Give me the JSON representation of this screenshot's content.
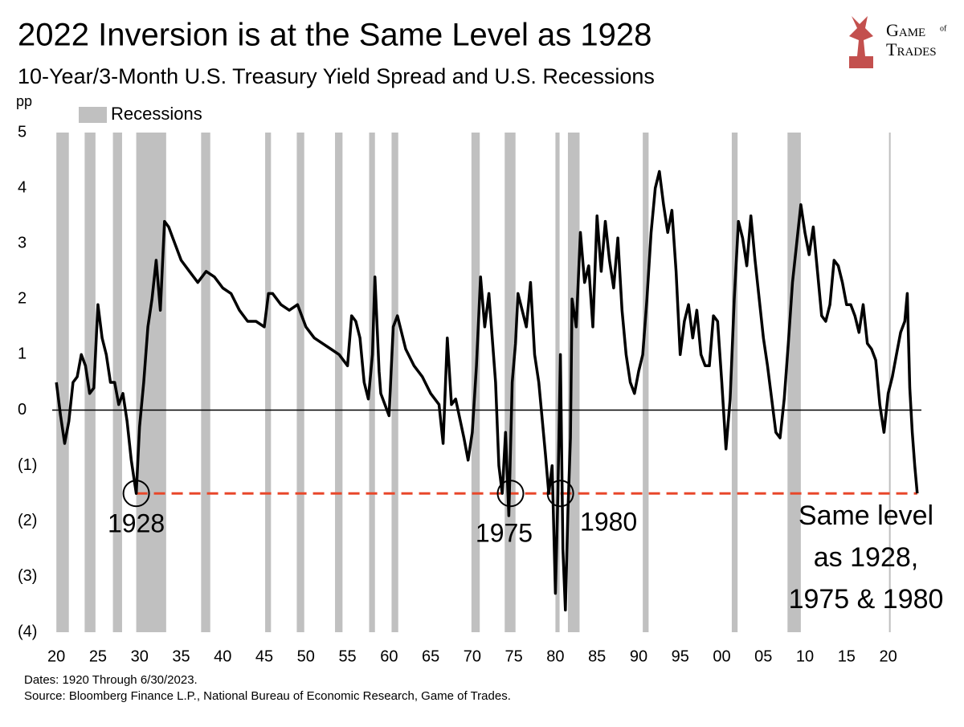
{
  "chart_data": {
    "type": "line",
    "title": "2022 Inversion is at the Same Level as 1928",
    "subtitle": "10-Year/3-Month U.S. Treasury Yield Spread and U.S. Recessions",
    "y_label": "pp",
    "logo": [
      "Game",
      "of",
      "Trades"
    ],
    "footnotes": [
      "Dates: 1920 Through 6/30/2023.",
      "Source: Bloomberg Finance L.P., National Bureau of Economic Research, Game of Trades."
    ],
    "color": "#000000",
    "recessions": {
      "name": "Recessions",
      "color": "#c0c0c0",
      "periods": [
        [
          1920.0,
          1921.5
        ],
        [
          1923.4,
          1924.7
        ],
        [
          1926.8,
          1927.9
        ],
        [
          1929.6,
          1933.2
        ],
        [
          1937.4,
          1938.5
        ],
        [
          1945.1,
          1945.8
        ],
        [
          1948.9,
          1949.8
        ],
        [
          1953.5,
          1954.4
        ],
        [
          1957.6,
          1958.3
        ],
        [
          1960.3,
          1961.1
        ],
        [
          1969.9,
          1970.9
        ],
        [
          1973.9,
          1975.2
        ],
        [
          1980.0,
          1980.5
        ],
        [
          1981.5,
          1982.9
        ],
        [
          1990.5,
          1991.2
        ],
        [
          2001.2,
          2001.9
        ],
        [
          2007.9,
          2009.5
        ],
        [
          2020.1,
          2020.3
        ]
      ]
    },
    "x": [
      1920.0,
      1920.5,
      1921,
      1921.5,
      1922,
      1922.5,
      1923,
      1923.5,
      1924,
      1924.5,
      1925,
      1925.5,
      1926,
      1926.5,
      1927,
      1927.5,
      1928,
      1928.5,
      1929,
      1929.4,
      1929.6,
      1930,
      1930.5,
      1931,
      1931.5,
      1932,
      1932.5,
      1933,
      1933.5,
      1934,
      1935,
      1936,
      1937,
      1938,
      1939,
      1940,
      1941,
      1942,
      1943,
      1944,
      1945,
      1945.5,
      1946,
      1947,
      1948,
      1949,
      1950,
      1951,
      1952,
      1953,
      1954,
      1955,
      1955.5,
      1956,
      1956.5,
      1957,
      1957.5,
      1958,
      1958.3,
      1958.8,
      1959,
      1960,
      1960.5,
      1961,
      1962,
      1963,
      1964,
      1965,
      1966,
      1966.5,
      1967,
      1967.5,
      1968,
      1969,
      1969.5,
      1970,
      1970.5,
      1971,
      1971.5,
      1972,
      1972.8,
      1973.2,
      1973.6,
      1974,
      1974.4,
      1974.8,
      1975.2,
      1975.5,
      1976,
      1976.5,
      1977,
      1977.5,
      1978,
      1978.8,
      1979.2,
      1979.6,
      1980,
      1980.3,
      1980.6,
      1980.9,
      1981.2,
      1981.5,
      1981.8,
      1982,
      1982.5,
      1983,
      1983.5,
      1984,
      1984.5,
      1985,
      1985.5,
      1986,
      1986.5,
      1987,
      1987.5,
      1988,
      1988.5,
      1989,
      1989.5,
      1990,
      1990.5,
      1991,
      1991.5,
      1992,
      1992.5,
      1993,
      1993.5,
      1994,
      1994.5,
      1995,
      1995.5,
      1996,
      1996.5,
      1997,
      1997.5,
      1998,
      1998.5,
      1999,
      1999.5,
      2000,
      2000.5,
      2001,
      2001.5,
      2002,
      2002.5,
      2003,
      2003.5,
      2004,
      2004.5,
      2005,
      2005.5,
      2006,
      2006.5,
      2007,
      2007.5,
      2008,
      2008.5,
      2009,
      2009.5,
      2010,
      2010.5,
      2011,
      2011.5,
      2012,
      2012.5,
      2013,
      2013.5,
      2014,
      2014.5,
      2015,
      2015.5,
      2016,
      2016.5,
      2017,
      2017.5,
      2018,
      2018.5,
      2019,
      2019.5,
      2020,
      2020.5,
      2021,
      2021.5,
      2022,
      2022.3,
      2022.6,
      2022.9,
      2023.2,
      2023.5
    ],
    "values": [
      0.5,
      -0.1,
      -0.6,
      -0.2,
      0.5,
      0.6,
      1.0,
      0.8,
      0.3,
      0.4,
      1.9,
      1.3,
      1.0,
      0.5,
      0.5,
      0.1,
      0.3,
      -0.2,
      -0.9,
      -1.3,
      -1.5,
      -0.3,
      0.5,
      1.5,
      2.0,
      2.7,
      1.8,
      3.4,
      3.3,
      3.1,
      2.7,
      2.5,
      2.3,
      2.5,
      2.4,
      2.2,
      2.1,
      1.8,
      1.6,
      1.6,
      1.5,
      2.1,
      2.1,
      1.9,
      1.8,
      1.9,
      1.5,
      1.3,
      1.2,
      1.1,
      1.0,
      0.8,
      1.7,
      1.6,
      1.3,
      0.5,
      0.2,
      1.0,
      2.4,
      0.7,
      0.3,
      -0.1,
      1.5,
      1.7,
      1.1,
      0.8,
      0.6,
      0.3,
      0.1,
      -0.6,
      1.3,
      0.1,
      0.2,
      -0.5,
      -0.9,
      -0.4,
      0.8,
      2.4,
      1.5,
      2.1,
      0.5,
      -1.0,
      -1.5,
      -0.4,
      -1.9,
      0.5,
      1.2,
      2.1,
      1.8,
      1.5,
      2.3,
      1.0,
      0.5,
      -0.8,
      -1.5,
      -1.0,
      -3.3,
      -1.5,
      1.0,
      -2.5,
      -3.6,
      -1.8,
      -0.5,
      2.0,
      1.5,
      3.2,
      2.3,
      2.6,
      1.5,
      3.5,
      2.5,
      3.4,
      2.7,
      2.2,
      3.1,
      1.8,
      1.0,
      0.5,
      0.3,
      0.7,
      1.0,
      2.0,
      3.2,
      4.0,
      4.3,
      3.7,
      3.2,
      3.6,
      2.5,
      1.0,
      1.6,
      1.9,
      1.3,
      1.8,
      1.0,
      0.8,
      0.8,
      1.7,
      1.6,
      0.5,
      -0.7,
      0.2,
      2.0,
      3.4,
      3.1,
      2.6,
      3.5,
      2.7,
      2.0,
      1.3,
      0.8,
      0.2,
      -0.4,
      -0.5,
      0.2,
      1.2,
      2.3,
      3.0,
      3.7,
      3.2,
      2.8,
      3.3,
      2.5,
      1.7,
      1.6,
      1.9,
      2.7,
      2.6,
      2.3,
      1.9,
      1.9,
      1.7,
      1.4,
      1.9,
      1.2,
      1.1,
      0.9,
      0.1,
      -0.4,
      0.3,
      0.6,
      1.0,
      1.4,
      1.6,
      2.1,
      0.4,
      -0.4,
      -1.0,
      -1.5
    ],
    "xlim": [
      1919.5,
      2024
    ],
    "xticks": [
      {
        "value": 1920,
        "label": "20"
      },
      {
        "value": 1925,
        "label": "25"
      },
      {
        "value": 1930,
        "label": "30"
      },
      {
        "value": 1935,
        "label": "35"
      },
      {
        "value": 1940,
        "label": "40"
      },
      {
        "value": 1945,
        "label": "45"
      },
      {
        "value": 1950,
        "label": "50"
      },
      {
        "value": 1955,
        "label": "55"
      },
      {
        "value": 1960,
        "label": "60"
      },
      {
        "value": 1965,
        "label": "65"
      },
      {
        "value": 1970,
        "label": "70"
      },
      {
        "value": 1975,
        "label": "75"
      },
      {
        "value": 1980,
        "label": "80"
      },
      {
        "value": 1985,
        "label": "85"
      },
      {
        "value": 1990,
        "label": "90"
      },
      {
        "value": 1995,
        "label": "95"
      },
      {
        "value": 2000,
        "label": "00"
      },
      {
        "value": 2005,
        "label": "05"
      },
      {
        "value": 2010,
        "label": "10"
      },
      {
        "value": 2015,
        "label": "15"
      },
      {
        "value": 2020,
        "label": "20"
      }
    ],
    "ylim": [
      -4,
      5
    ],
    "yticks": [
      5,
      4,
      3,
      2,
      1,
      0,
      {
        "value": -1,
        "label": "(1)"
      },
      {
        "value": -2,
        "label": "(2)"
      },
      {
        "value": -3,
        "label": "(3)"
      },
      {
        "value": -4,
        "label": "(4)"
      }
    ],
    "reference_line": {
      "y": -1.5,
      "x": [
        1929.6,
        2023.5
      ],
      "color": "#e8472a"
    },
    "annotations": [
      {
        "text": "1928",
        "x": 1929.6,
        "y": -1.5
      },
      {
        "text": "1975",
        "x": 1974.6,
        "y": -1.5
      },
      {
        "text": "1980",
        "x": 1980.6,
        "y": -1.5
      }
    ],
    "note": [
      "Same level",
      "as 1928,",
      "1975 & 1980"
    ]
  }
}
